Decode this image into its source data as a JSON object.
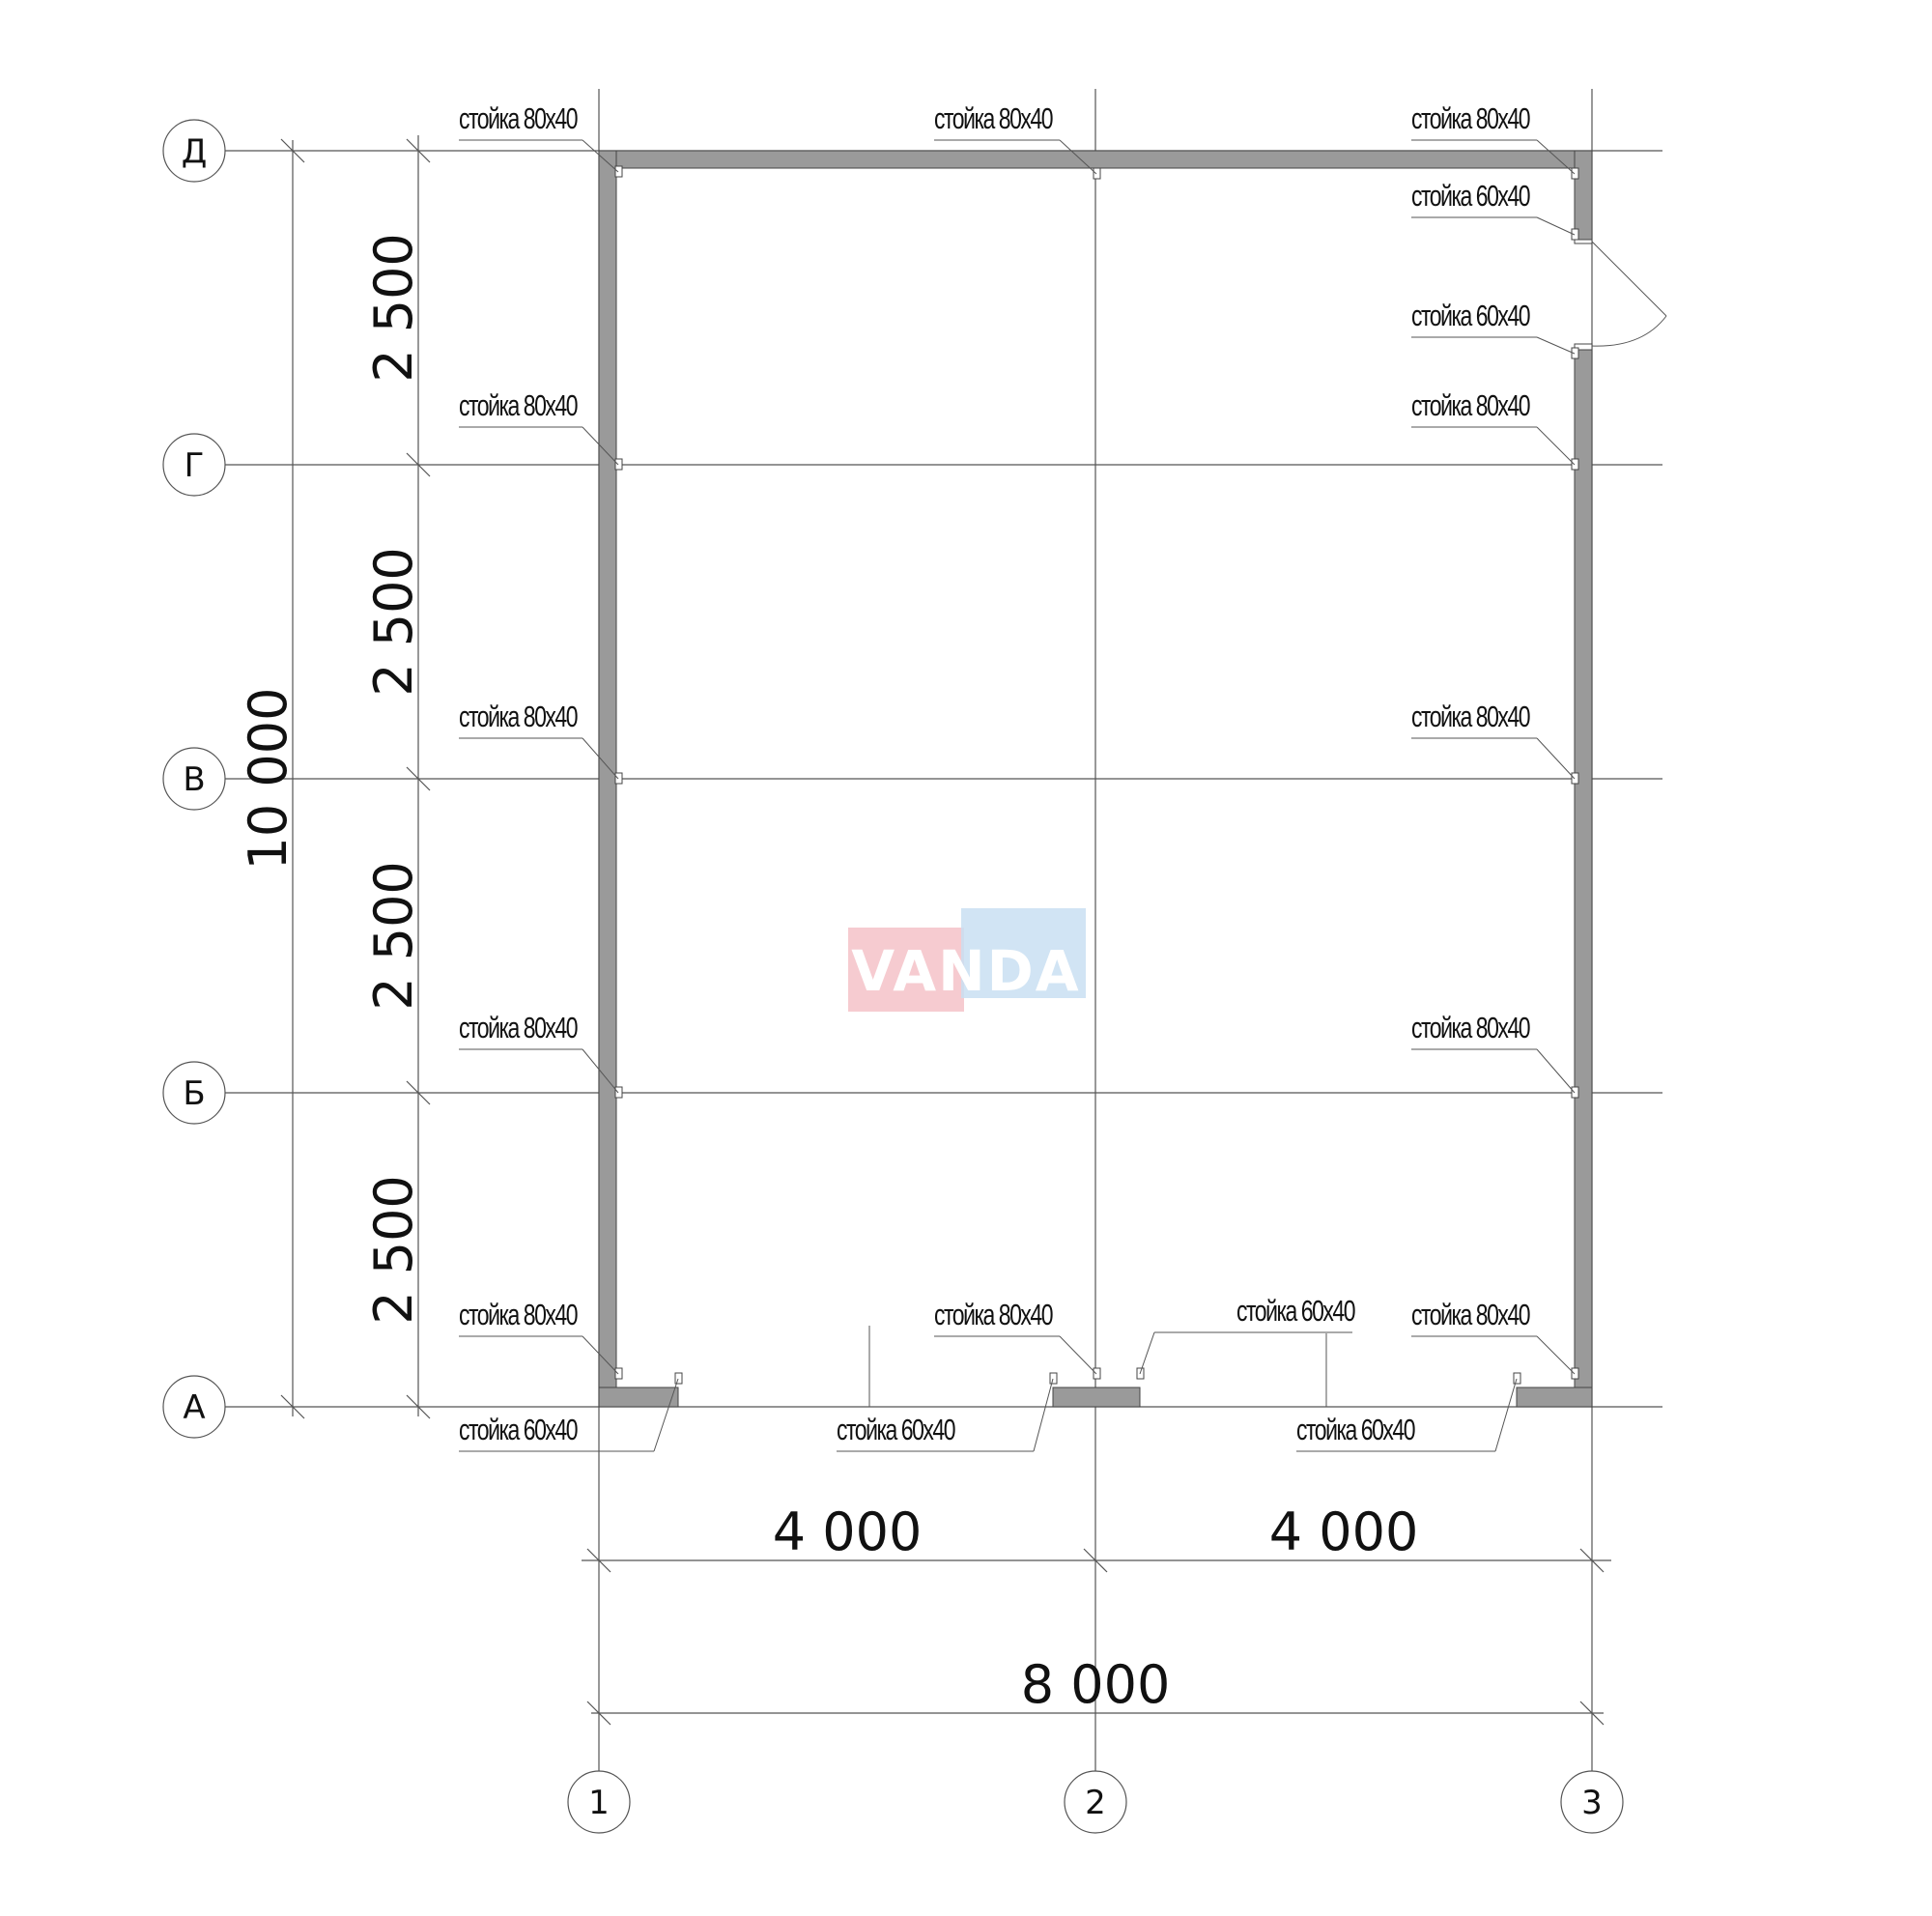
{
  "axes": {
    "rows": [
      "Д",
      "Г",
      "В",
      "Б",
      "А"
    ],
    "columns": [
      "1",
      "2",
      "3"
    ]
  },
  "dimensions": {
    "rows": [
      "2 500",
      "2 500",
      "2 500",
      "2 500"
    ],
    "total_height": "10 000",
    "columns": [
      "4 000",
      "4 000"
    ],
    "total_width": "8 000"
  },
  "labels": [
    "стойка 80х40",
    "стойка 80х40",
    "стойка 80х40",
    "стойка 60х40",
    "стойка 60х40",
    "стойка 80х40",
    "стойка 80х40",
    "стойка 80х40",
    "стойка 80х40",
    "стойка 80х40",
    "стойка 80х40",
    "стойка 80х40",
    "стойка 80х40",
    "стойка 60х40",
    "стойка 80х40",
    "стойка 60х40",
    "стойка 60х40",
    "стойка 60х40"
  ],
  "watermark": {
    "text": "VANDA",
    "colors": {
      "left": "#f4c2c8",
      "right": "#c9dff2"
    }
  },
  "colors": {
    "wall": "#9a9a9a",
    "lines": "#555555"
  }
}
